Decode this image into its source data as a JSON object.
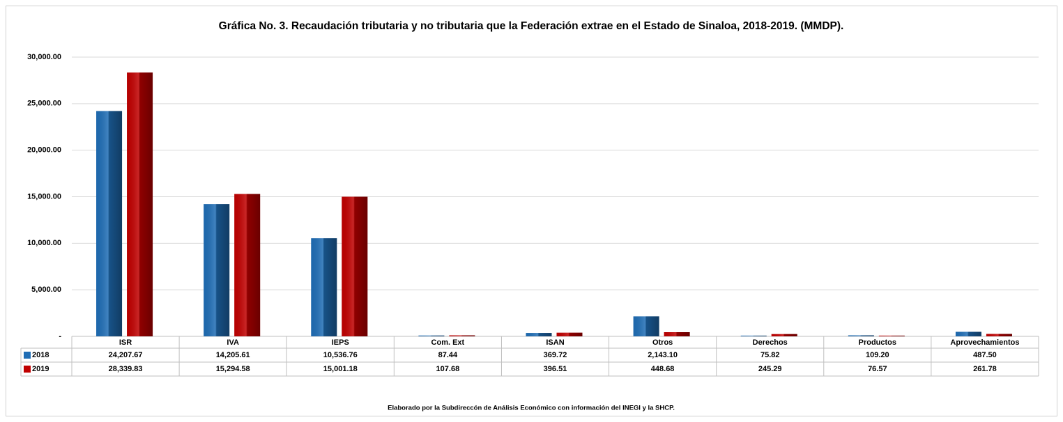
{
  "chart_data": {
    "type": "bar",
    "title": "Gráfica No. 3. Recaudación tributaria y no tributaria que la Federación extrae en el Estado de  Sinaloa, 2018-2019. (MMDP).",
    "note": "Elaborado por la Subdireccón de Análisis Económico con información del INEGI y la SHCP.",
    "categories": [
      "ISR",
      "IVA",
      "IEPS",
      "Com. Ext",
      "ISAN",
      "Otros",
      "Derechos",
      "Productos",
      "Aprovechamientos"
    ],
    "series": [
      {
        "name": "2018",
        "color": "#1f6db5",
        "values": [
          24207.67,
          14205.61,
          10536.76,
          87.44,
          369.72,
          2143.1,
          75.82,
          109.2,
          487.5
        ],
        "value_labels": [
          "24,207.67",
          "14,205.61",
          "10,536.76",
          "87.44",
          "369.72",
          "2,143.10",
          "75.82",
          "109.20",
          "487.50"
        ]
      },
      {
        "name": "2019",
        "color": "#c00000",
        "values": [
          28339.83,
          15294.58,
          15001.18,
          107.68,
          396.51,
          448.68,
          245.29,
          76.57,
          261.78
        ],
        "value_labels": [
          "28,339.83",
          "15,294.58",
          "15,001.18",
          "107.68",
          "396.51",
          "448.68",
          "245.29",
          "76.57",
          "261.78"
        ]
      }
    ],
    "ylim": [
      0,
      30000
    ],
    "yticks": [
      {
        "value": 0,
        "label": "-"
      },
      {
        "value": 5000,
        "label": "5,000.00"
      },
      {
        "value": 10000,
        "label": "10,000.00"
      },
      {
        "value": 15000,
        "label": "15,000.00"
      },
      {
        "value": 20000,
        "label": "20,000.00"
      },
      {
        "value": 25000,
        "label": "25,000.00"
      },
      {
        "value": 30000,
        "label": "30,000.00"
      }
    ],
    "grid": true
  }
}
